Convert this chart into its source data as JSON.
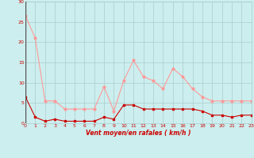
{
  "x": [
    0,
    1,
    2,
    3,
    4,
    5,
    6,
    7,
    8,
    9,
    10,
    11,
    12,
    13,
    14,
    15,
    16,
    17,
    18,
    19,
    20,
    21,
    22,
    23
  ],
  "y_mean": [
    6.5,
    1.5,
    0.5,
    1.0,
    0.5,
    0.5,
    0.5,
    0.5,
    1.5,
    1.0,
    4.5,
    4.5,
    3.5,
    3.5,
    3.5,
    3.5,
    3.5,
    3.5,
    3.0,
    2.0,
    2.0,
    1.5,
    2.0,
    2.0
  ],
  "y_gust": [
    26.5,
    21.0,
    5.5,
    5.5,
    3.5,
    3.5,
    3.5,
    3.5,
    9.0,
    3.0,
    10.5,
    15.5,
    11.5,
    10.5,
    8.5,
    13.5,
    11.5,
    8.5,
    6.5,
    5.5,
    5.5,
    5.5,
    5.5,
    5.5
  ],
  "color_mean": "#cc0000",
  "color_gust": "#ff9999",
  "bg_color": "#cceeee",
  "grid_color": "#aacccc",
  "xlabel": "Vent moyen/en rafales ( km/h )",
  "xlabel_color": "#cc0000",
  "tick_color": "#cc0000",
  "ylim": [
    0,
    30
  ],
  "yticks": [
    0,
    5,
    10,
    15,
    20,
    25,
    30
  ],
  "xlim": [
    0,
    23
  ],
  "xticks": [
    0,
    1,
    2,
    3,
    4,
    5,
    6,
    7,
    8,
    9,
    10,
    11,
    12,
    13,
    14,
    15,
    16,
    17,
    18,
    19,
    20,
    21,
    22,
    23
  ]
}
